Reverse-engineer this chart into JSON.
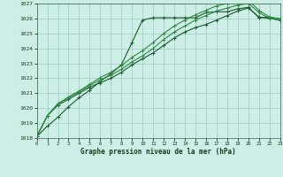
{
  "title": "",
  "xlabel": "Graphe pression niveau de la mer (hPa)",
  "ylim": [
    1018,
    1027
  ],
  "xlim": [
    0,
    23
  ],
  "yticks": [
    1018,
    1019,
    1020,
    1021,
    1022,
    1023,
    1024,
    1025,
    1026,
    1027
  ],
  "xticks": [
    0,
    1,
    2,
    3,
    4,
    5,
    6,
    7,
    8,
    9,
    10,
    11,
    12,
    13,
    14,
    15,
    16,
    17,
    18,
    19,
    20,
    21,
    22,
    23
  ],
  "background_color": "#cceee6",
  "grid_color": "#99ccbb",
  "line_colors": [
    "#1a5c2a",
    "#1a5c2a",
    "#2d8a3e",
    "#2d8a3e"
  ],
  "series": [
    [
      1018.1,
      1018.8,
      1019.4,
      1020.1,
      1020.7,
      1021.2,
      1021.8,
      1022.3,
      1022.9,
      1024.4,
      1025.9,
      1026.05,
      1026.05,
      1026.05,
      1026.05,
      1026.05,
      1026.4,
      1026.45,
      1026.45,
      1026.65,
      1026.75,
      1026.05,
      1026.1,
      1025.85
    ],
    [
      1018.1,
      1019.5,
      1020.2,
      1020.6,
      1021.0,
      1021.4,
      1021.7,
      1022.0,
      1022.4,
      1022.9,
      1023.3,
      1023.7,
      1024.2,
      1024.7,
      1025.1,
      1025.4,
      1025.6,
      1025.9,
      1026.2,
      1026.5,
      1026.7,
      1026.1,
      1026.0,
      1025.9
    ],
    [
      1018.1,
      1019.5,
      1020.3,
      1020.7,
      1021.1,
      1021.5,
      1021.9,
      1022.2,
      1022.6,
      1023.1,
      1023.5,
      1024.0,
      1024.6,
      1025.1,
      1025.5,
      1025.9,
      1026.2,
      1026.5,
      1026.7,
      1026.9,
      1027.0,
      1026.4,
      1026.0,
      1025.9
    ],
    [
      1018.1,
      1019.5,
      1020.3,
      1020.75,
      1021.15,
      1021.6,
      1022.05,
      1022.4,
      1022.85,
      1023.4,
      1023.85,
      1024.4,
      1025.0,
      1025.5,
      1025.9,
      1026.25,
      1026.55,
      1026.85,
      1027.0,
      1027.15,
      1027.2,
      1026.55,
      1026.1,
      1026.0
    ]
  ],
  "marker": "+",
  "markersize": 3,
  "linewidth": 0.8
}
